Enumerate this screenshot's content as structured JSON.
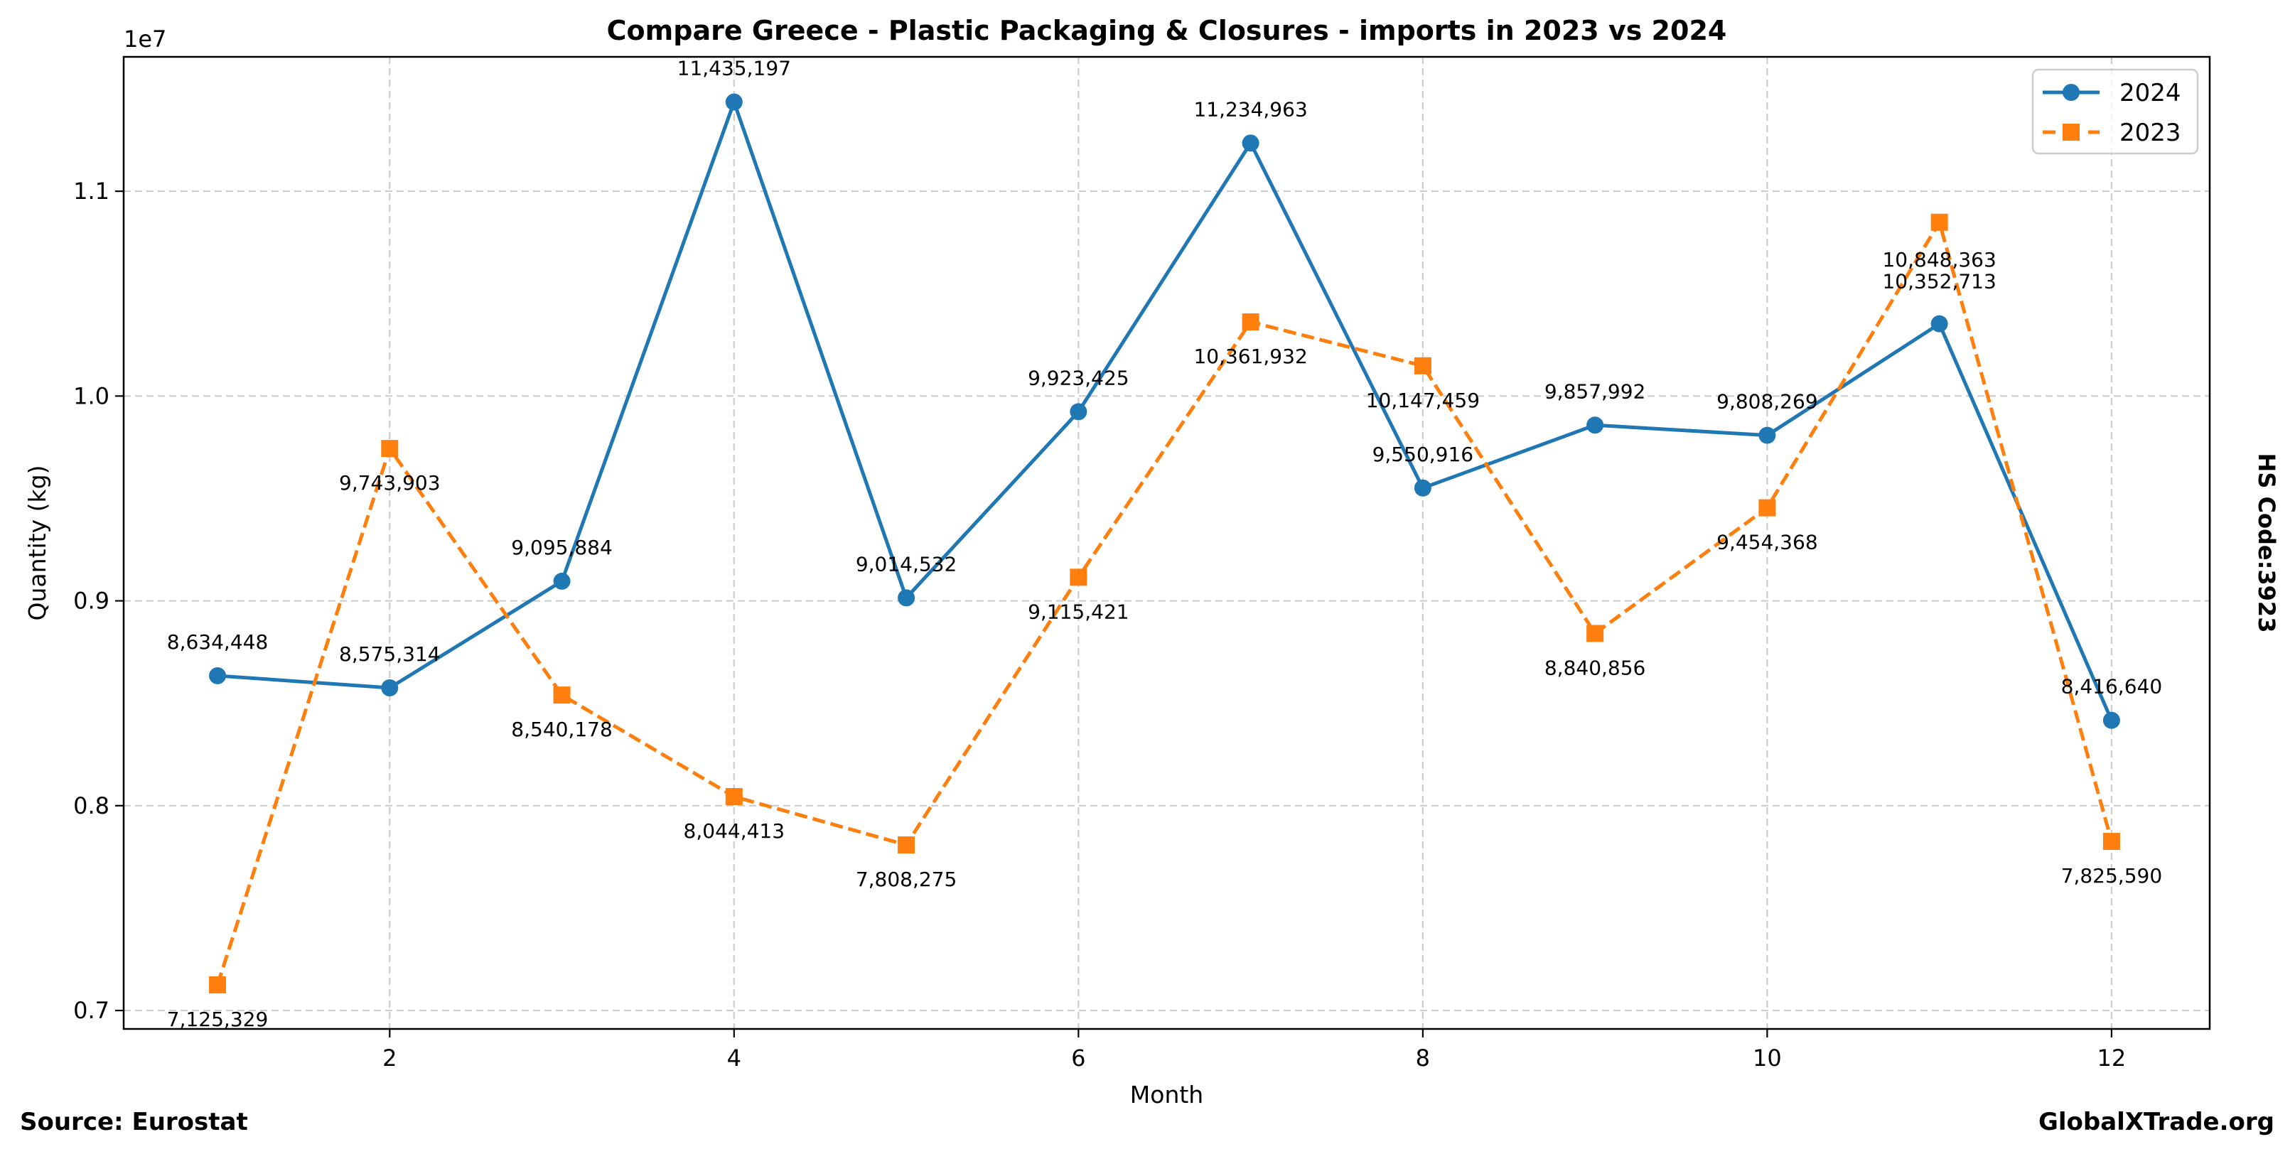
{
  "chart_data": {
    "type": "line",
    "title": "Compare Greece - Plastic Packaging & Closures - imports in 2023 vs 2024",
    "xlabel": "Month",
    "ylabel": "Quantity (kg)",
    "y_offset_label": "1e7",
    "right_label": "HS Code:3923",
    "source_label": "Source: Eurostat",
    "brand_label": "GlobalXTrade.org",
    "xlim": [
      0.455,
      12.57
    ],
    "ylim": [
      6910000,
      11656000
    ],
    "x_ticks": [
      2,
      4,
      6,
      8,
      10,
      12
    ],
    "x_tick_labels": [
      "2",
      "4",
      "6",
      "8",
      "10",
      "12"
    ],
    "y_ticks": [
      7000000,
      8000000,
      9000000,
      10000000,
      11000000
    ],
    "y_tick_labels": [
      "0.7",
      "0.8",
      "0.9",
      "1.0",
      "1.1"
    ],
    "grid": true,
    "legend_position": "top-right",
    "x": [
      1,
      2,
      3,
      4,
      5,
      6,
      7,
      8,
      9,
      10,
      11,
      12
    ],
    "series": [
      {
        "name": "2024",
        "color": "#1f77b4",
        "marker": "circle",
        "linestyle": "solid",
        "values": [
          8634448,
          8575314,
          9095884,
          11435197,
          9014532,
          9923425,
          11234963,
          9550916,
          9857992,
          9808269,
          10352713,
          8416640
        ],
        "labels": [
          "8,634,448",
          "8,575,314",
          "9,095,884",
          "11,435,197",
          "9,014,532",
          "9,923,425",
          "11,234,963",
          "9,550,916",
          "9,857,992",
          "9,808,269",
          "10,352,713",
          "8,416,640"
        ]
      },
      {
        "name": "2023",
        "color": "#ff7f0e",
        "marker": "square",
        "linestyle": "dashed",
        "values": [
          7125329,
          9743903,
          8540178,
          8044413,
          7808275,
          9115421,
          10361932,
          10147459,
          8840856,
          9454368,
          10848363,
          7825590
        ],
        "labels": [
          "7,125,329",
          "9,743,903",
          "8,540,178",
          "8,044,413",
          "7,808,275",
          "9,115,421",
          "10,361,932",
          "10,147,459",
          "8,840,856",
          "9,454,368",
          "10,848,363",
          "7,825,590"
        ]
      }
    ]
  }
}
